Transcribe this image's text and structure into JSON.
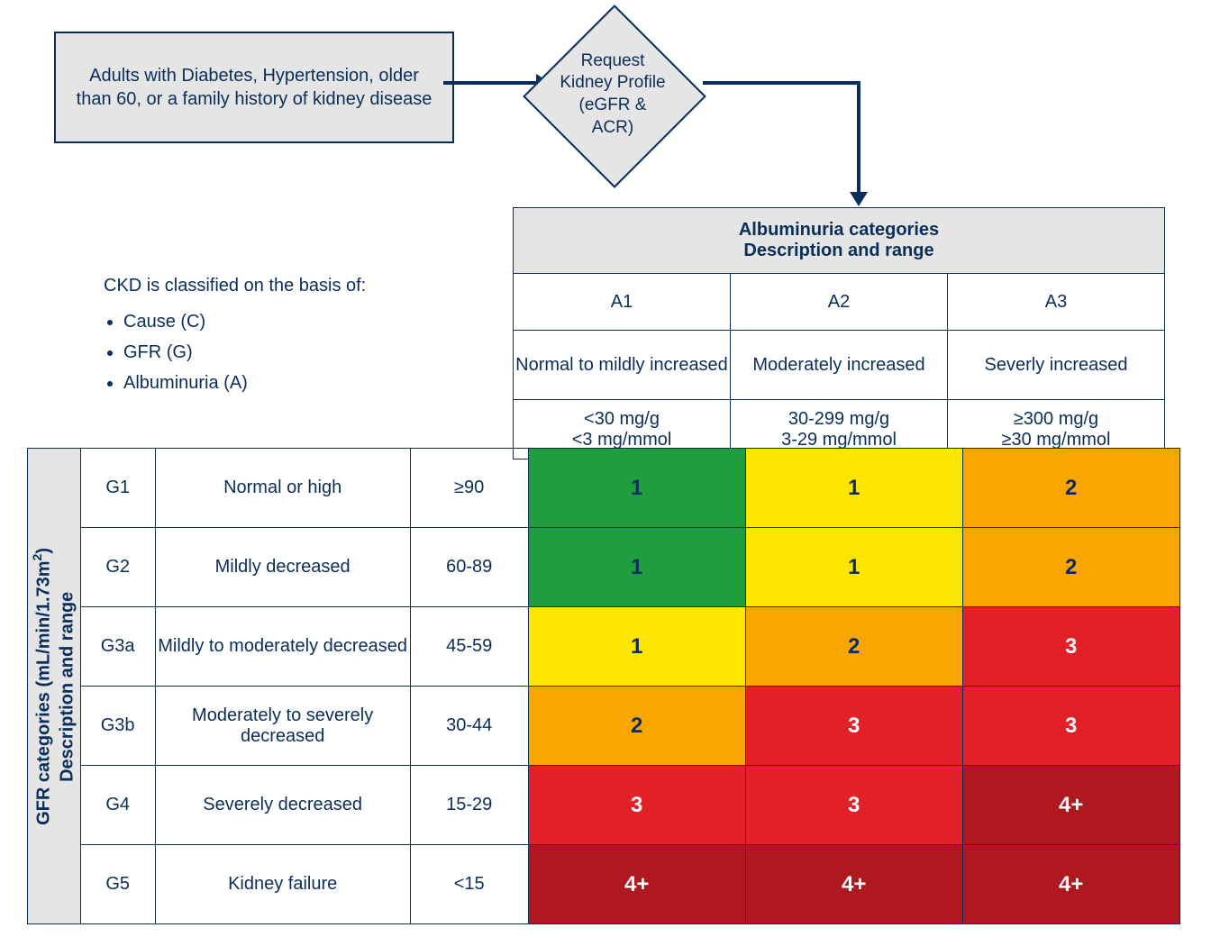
{
  "flow": {
    "box1": "Adults with Diabetes, Hypertension, older than 60, or a family history of kidney disease",
    "diamond_l1": "Request",
    "diamond_l2": "Kidney Profile",
    "diamond_l3": "(eGFR & ACR)"
  },
  "classify": {
    "intro": "CKD is classified on the basis of:",
    "items": [
      "Cause (C)",
      "GFR (G)",
      "Albuminuria (A)"
    ]
  },
  "alb": {
    "header_l1": "Albuminuria categories",
    "header_l2": "Description and range",
    "cols": [
      {
        "code": "A1",
        "desc": "Normal to mildly increased",
        "range1": "<30 mg/g",
        "range2": "<3 mg/mmol"
      },
      {
        "code": "A2",
        "desc": "Moderately increased",
        "range1": "30-299 mg/g",
        "range2": "3-29 mg/mmol"
      },
      {
        "code": "A3",
        "desc": "Severly increased",
        "range1": "≥300 mg/g",
        "range2": "≥30 mg/mmol"
      }
    ]
  },
  "gfr": {
    "side_l1": "GFR categories (mL/min/1.73m²)",
    "side_l2": "Description and range",
    "rows": [
      {
        "code": "G1",
        "desc": "Normal or high",
        "range": "≥90"
      },
      {
        "code": "G2",
        "desc": "Mildly decreased",
        "range": "60-89"
      },
      {
        "code": "G3a",
        "desc": "Mildly to moderately decreased",
        "range": "45-59"
      },
      {
        "code": "G3b",
        "desc": "Moderately to severely decreased",
        "range": "30-44"
      },
      {
        "code": "G4",
        "desc": "Severely decreased",
        "range": "15-29"
      },
      {
        "code": "G5",
        "desc": "Kidney failure",
        "range": "<15"
      }
    ]
  },
  "risk": {
    "colors": {
      "green": "#1e9e3e",
      "yellow": "#ffe600",
      "orange": "#f9a602",
      "red": "#e12127",
      "darkred": "#b01820"
    },
    "text_colors": {
      "navy": "#0a2e5c",
      "white": "#ffffff"
    },
    "grid": [
      [
        {
          "v": "1",
          "c": "green",
          "t": "navy"
        },
        {
          "v": "1",
          "c": "yellow",
          "t": "navy"
        },
        {
          "v": "2",
          "c": "orange",
          "t": "navy"
        }
      ],
      [
        {
          "v": "1",
          "c": "green",
          "t": "navy"
        },
        {
          "v": "1",
          "c": "yellow",
          "t": "navy"
        },
        {
          "v": "2",
          "c": "orange",
          "t": "navy"
        }
      ],
      [
        {
          "v": "1",
          "c": "yellow",
          "t": "navy"
        },
        {
          "v": "2",
          "c": "orange",
          "t": "navy"
        },
        {
          "v": "3",
          "c": "red",
          "t": "white"
        }
      ],
      [
        {
          "v": "2",
          "c": "orange",
          "t": "navy"
        },
        {
          "v": "3",
          "c": "red",
          "t": "white"
        },
        {
          "v": "3",
          "c": "red",
          "t": "white"
        }
      ],
      [
        {
          "v": "3",
          "c": "red",
          "t": "white"
        },
        {
          "v": "3",
          "c": "red",
          "t": "white"
        },
        {
          "v": "4+",
          "c": "darkred",
          "t": "white"
        }
      ],
      [
        {
          "v": "4+",
          "c": "darkred",
          "t": "white"
        },
        {
          "v": "4+",
          "c": "darkred",
          "t": "white"
        },
        {
          "v": "4+",
          "c": "darkred",
          "t": "white"
        }
      ]
    ]
  },
  "layout": {
    "col_w": {
      "side": 52,
      "code": 80,
      "desc": 280,
      "range": 128,
      "risk": 238
    },
    "row_h": {
      "upper_hdr": 70,
      "upper_code": 60,
      "upper_desc": 74,
      "upper_range": 63,
      "gfr": 85
    }
  }
}
